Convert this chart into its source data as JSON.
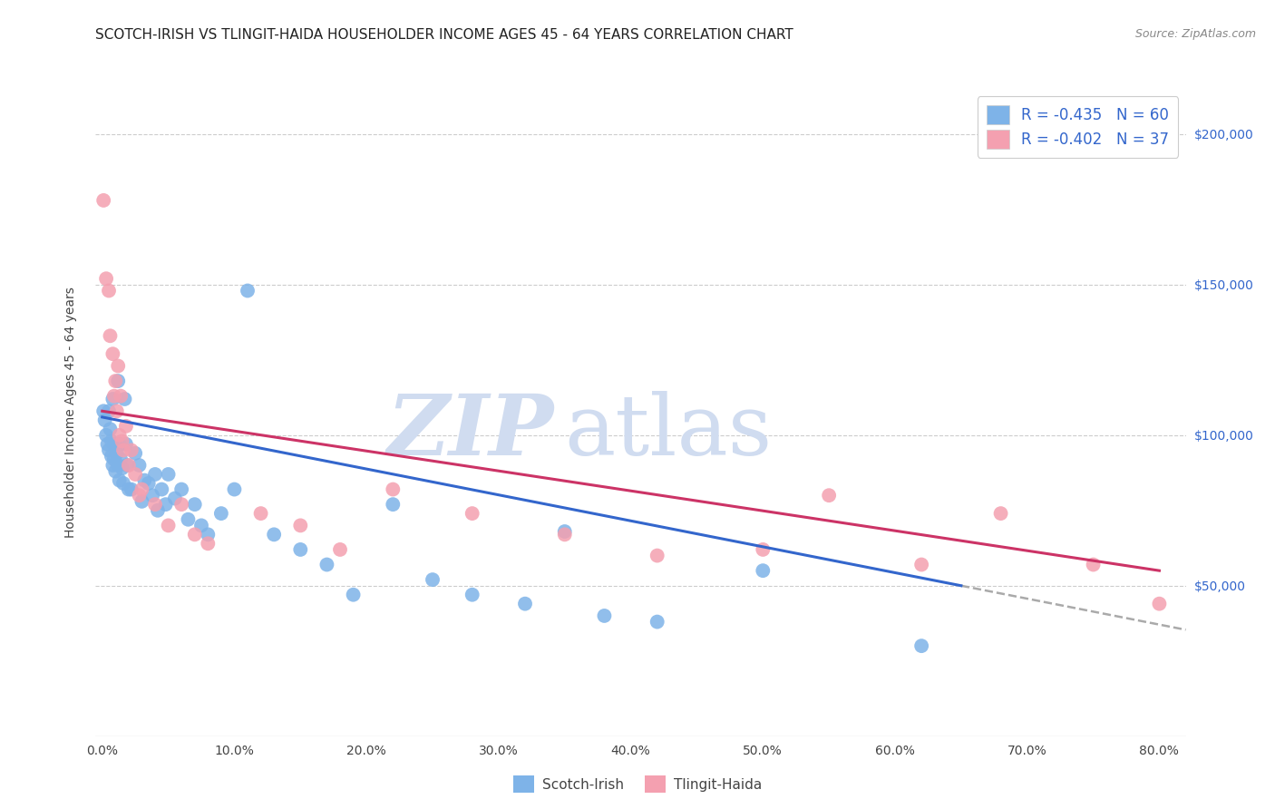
{
  "title": "SCOTCH-IRISH VS TLINGIT-HAIDA HOUSEHOLDER INCOME AGES 45 - 64 YEARS CORRELATION CHART",
  "source": "Source: ZipAtlas.com",
  "ylabel": "Householder Income Ages 45 - 64 years",
  "xlabel_ticks": [
    "0.0%",
    "10.0%",
    "20.0%",
    "30.0%",
    "40.0%",
    "50.0%",
    "60.0%",
    "70.0%",
    "80.0%"
  ],
  "xlabel_vals": [
    0.0,
    0.1,
    0.2,
    0.3,
    0.4,
    0.5,
    0.6,
    0.7,
    0.8
  ],
  "ytick_vals": [
    50000,
    100000,
    150000,
    200000
  ],
  "right_ytick_labels": [
    "$50,000",
    "$100,000",
    "$150,000",
    "$200,000"
  ],
  "blue_R": -0.435,
  "blue_N": 60,
  "pink_R": -0.402,
  "pink_N": 37,
  "legend_label_blue": "R = -0.435   N = 60",
  "legend_label_pink": "R = -0.402   N = 37",
  "bottom_legend_blue": "Scotch-Irish",
  "bottom_legend_pink": "Tlingit-Haida",
  "blue_scatter_color": "#7EB3E8",
  "pink_scatter_color": "#F4A0B0",
  "blue_line_color": "#3366CC",
  "pink_line_color": "#CC3366",
  "dashed_line_color": "#AAAAAA",
  "watermark_color": "#D0DCF0",
  "background_color": "#FFFFFF",
  "grid_color": "#CCCCCC",
  "title_fontsize": 11,
  "source_fontsize": 9,
  "blue_x": [
    0.001,
    0.002,
    0.003,
    0.004,
    0.005,
    0.005,
    0.006,
    0.007,
    0.007,
    0.008,
    0.008,
    0.009,
    0.009,
    0.01,
    0.011,
    0.012,
    0.012,
    0.013,
    0.013,
    0.014,
    0.015,
    0.016,
    0.017,
    0.018,
    0.019,
    0.02,
    0.022,
    0.025,
    0.028,
    0.03,
    0.032,
    0.035,
    0.038,
    0.04,
    0.042,
    0.045,
    0.048,
    0.05,
    0.055,
    0.06,
    0.065,
    0.07,
    0.075,
    0.08,
    0.09,
    0.1,
    0.11,
    0.13,
    0.15,
    0.17,
    0.19,
    0.22,
    0.25,
    0.28,
    0.32,
    0.35,
    0.38,
    0.42,
    0.5,
    0.62
  ],
  "blue_y": [
    108000,
    105000,
    100000,
    97000,
    95000,
    108000,
    102000,
    98000,
    93000,
    112000,
    90000,
    97000,
    92000,
    88000,
    94000,
    118000,
    90000,
    97000,
    85000,
    92000,
    89000,
    84000,
    112000,
    97000,
    90000,
    82000,
    82000,
    94000,
    90000,
    78000,
    85000,
    84000,
    80000,
    87000,
    75000,
    82000,
    77000,
    87000,
    79000,
    82000,
    72000,
    77000,
    70000,
    67000,
    74000,
    82000,
    148000,
    67000,
    62000,
    57000,
    47000,
    77000,
    52000,
    47000,
    44000,
    68000,
    40000,
    38000,
    55000,
    30000
  ],
  "pink_x": [
    0.001,
    0.003,
    0.005,
    0.006,
    0.008,
    0.009,
    0.01,
    0.011,
    0.012,
    0.013,
    0.014,
    0.015,
    0.016,
    0.018,
    0.02,
    0.022,
    0.025,
    0.028,
    0.03,
    0.04,
    0.05,
    0.06,
    0.07,
    0.08,
    0.12,
    0.15,
    0.18,
    0.22,
    0.28,
    0.35,
    0.42,
    0.5,
    0.55,
    0.62,
    0.68,
    0.75,
    0.8
  ],
  "pink_y": [
    178000,
    152000,
    148000,
    133000,
    127000,
    113000,
    118000,
    108000,
    123000,
    100000,
    113000,
    98000,
    95000,
    103000,
    90000,
    95000,
    87000,
    80000,
    82000,
    77000,
    70000,
    77000,
    67000,
    64000,
    74000,
    70000,
    62000,
    82000,
    74000,
    67000,
    60000,
    62000,
    80000,
    57000,
    74000,
    57000,
    44000
  ]
}
